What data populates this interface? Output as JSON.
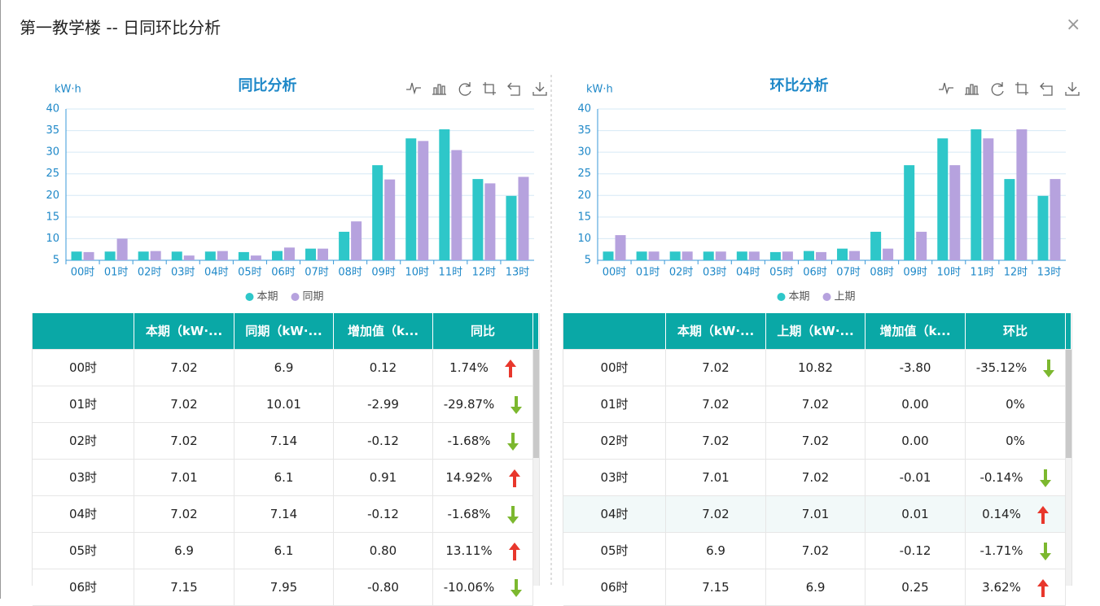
{
  "title": "第一教学楼 -- 日同环比分析",
  "chart_data": [
    {
      "type": "bar",
      "title": "同比分析",
      "y_label": "kW·h",
      "categories": [
        "00时",
        "01时",
        "02时",
        "03时",
        "04时",
        "05时",
        "06时",
        "07时",
        "08时",
        "09时",
        "10时",
        "11时",
        "12时",
        "13时"
      ],
      "series": [
        {
          "name": "本期",
          "color": "#2ec7c9",
          "values": [
            7.02,
            7.02,
            7.02,
            7.01,
            7.02,
            6.9,
            7.15,
            7.7,
            11.6,
            27,
            33.2,
            35.3,
            23.8,
            19.9
          ]
        },
        {
          "name": "同期",
          "color": "#b6a2de",
          "values": [
            6.9,
            10.01,
            7.14,
            6.1,
            7.14,
            6.1,
            7.95,
            7.7,
            14,
            23.7,
            32.6,
            30.5,
            22.8,
            24.3
          ]
        }
      ],
      "ylim": [
        5,
        40
      ],
      "yticks": [
        5,
        10,
        15,
        20,
        25,
        30,
        35,
        40
      ],
      "grid": true
    },
    {
      "type": "bar",
      "title": "环比分析",
      "y_label": "kW·h",
      "categories": [
        "00时",
        "01时",
        "02时",
        "03时",
        "04时",
        "05时",
        "06时",
        "07时",
        "08时",
        "09时",
        "10时",
        "11时",
        "12时",
        "13时"
      ],
      "series": [
        {
          "name": "本期",
          "color": "#2ec7c9",
          "values": [
            7.02,
            7.02,
            7.02,
            7.01,
            7.02,
            6.9,
            7.15,
            7.7,
            11.6,
            27,
            33.2,
            35.3,
            23.8,
            19.9
          ]
        },
        {
          "name": "上期",
          "color": "#b6a2de",
          "values": [
            10.82,
            7.02,
            7.02,
            7.02,
            7.01,
            7.02,
            6.9,
            7.15,
            7.7,
            11.6,
            27,
            33.2,
            35.3,
            23.8
          ]
        }
      ],
      "ylim": [
        5,
        40
      ],
      "yticks": [
        5,
        10,
        15,
        20,
        25,
        30,
        35,
        40
      ],
      "grid": true
    }
  ],
  "tables": [
    {
      "columns": [
        "本期（kW·...",
        "同期（kW·...",
        "增加值（k...",
        "同比"
      ],
      "rows": [
        [
          "00时",
          "7.02",
          "6.9",
          "0.12",
          "1.74%"
        ],
        [
          "01时",
          "7.02",
          "10.01",
          "-2.99",
          "-29.87%"
        ],
        [
          "02时",
          "7.02",
          "7.14",
          "-0.12",
          "-1.68%"
        ],
        [
          "03时",
          "7.01",
          "6.1",
          "0.91",
          "14.92%"
        ],
        [
          "04时",
          "7.02",
          "7.14",
          "-0.12",
          "-1.68%"
        ],
        [
          "05时",
          "6.9",
          "6.1",
          "0.80",
          "13.11%"
        ],
        [
          "06时",
          "7.15",
          "7.95",
          "-0.80",
          "-10.06%"
        ]
      ]
    },
    {
      "columns": [
        "本期（kW·...",
        "上期（kW·...",
        "增加值（k...",
        "环比"
      ],
      "rows": [
        [
          "00时",
          "7.02",
          "10.82",
          "-3.80",
          "-35.12%"
        ],
        [
          "01时",
          "7.02",
          "7.02",
          "0.00",
          "0%"
        ],
        [
          "02时",
          "7.02",
          "7.02",
          "0.00",
          "0%"
        ],
        [
          "03时",
          "7.01",
          "7.02",
          "-0.01",
          "-0.14%"
        ],
        [
          "04时",
          "7.02",
          "7.01",
          "0.01",
          "0.14%"
        ],
        [
          "05时",
          "6.9",
          "7.02",
          "-0.12",
          "-1.71%"
        ],
        [
          "06时",
          "7.15",
          "6.9",
          "0.25",
          "3.62%"
        ]
      ]
    }
  ]
}
